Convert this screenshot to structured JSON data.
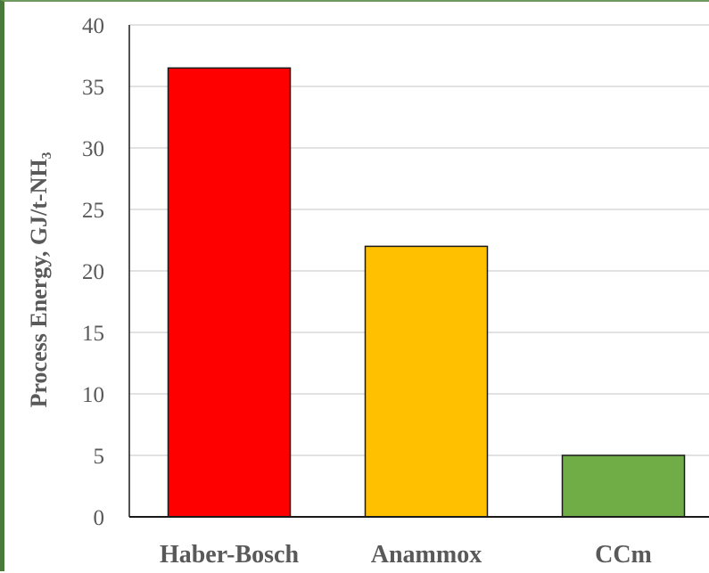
{
  "chart_data": {
    "type": "bar",
    "categories": [
      "Haber-Bosch",
      "Anammox",
      "CCm"
    ],
    "values": [
      36.5,
      22,
      5
    ],
    "colors": [
      "#ff0000",
      "#ffc000",
      "#70ad47"
    ],
    "ylabel": "Process Energy, GJ/t-NH₃",
    "xlabel": "",
    "ylim": [
      0,
      40
    ],
    "yticks": [
      0,
      5,
      10,
      15,
      20,
      25,
      30,
      35,
      40
    ],
    "grid": true,
    "legend": "none"
  }
}
